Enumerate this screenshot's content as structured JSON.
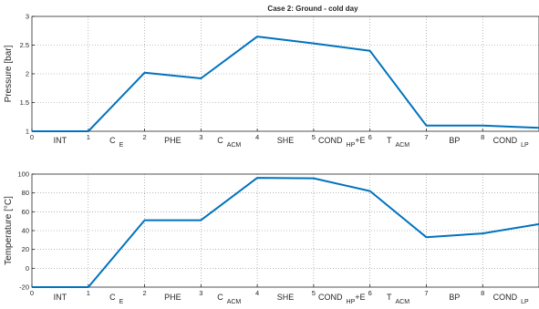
{
  "chart_data": [
    {
      "type": "line",
      "title": "Case 2: Ground - cold day",
      "ylabel": "Pressure [bar]",
      "xlim": [
        0,
        9
      ],
      "ylim": [
        1,
        3
      ],
      "xticks": [
        "0",
        "1",
        "2",
        "3",
        "4",
        "5",
        "6",
        "7",
        "8"
      ],
      "yticks": [
        "1",
        "1.5",
        "2",
        "2.5",
        "3"
      ],
      "grid": true,
      "x": [
        0,
        1,
        2,
        3,
        4,
        5,
        6,
        7,
        8,
        9
      ],
      "series": [
        {
          "values": [
            1.0,
            1.0,
            2.02,
            1.92,
            2.65,
            2.53,
            2.4,
            1.1,
            1.1,
            1.06
          ],
          "color": "#0072BD"
        }
      ],
      "stage_labels": [
        {
          "text": "INT",
          "sub": ""
        },
        {
          "text": "C",
          "sub": "E"
        },
        {
          "text": "PHE",
          "sub": ""
        },
        {
          "text": "C",
          "sub": "ACM"
        },
        {
          "text": "SHE",
          "sub": ""
        },
        {
          "text": "COND",
          "sub": "HP",
          "suffix": "+E"
        },
        {
          "text": "T",
          "sub": "ACM"
        },
        {
          "text": "BP",
          "sub": ""
        },
        {
          "text": "COND",
          "sub": "LP"
        }
      ]
    },
    {
      "type": "line",
      "title": "",
      "ylabel": "Temperature [°C]",
      "xlim": [
        0,
        9
      ],
      "ylim": [
        -20,
        100
      ],
      "xticks": [
        "0",
        "1",
        "2",
        "3",
        "4",
        "5",
        "6",
        "7",
        "8"
      ],
      "yticks": [
        "-20",
        "0",
        "20",
        "40",
        "60",
        "80",
        "100"
      ],
      "grid": true,
      "x": [
        0,
        1,
        2,
        3,
        4,
        5,
        6,
        7,
        8,
        9
      ],
      "series": [
        {
          "values": [
            -20,
            -20,
            51,
            51,
            96,
            95.5,
            82,
            33,
            37,
            47
          ],
          "color": "#0072BD"
        }
      ],
      "stage_labels": [
        {
          "text": "INT",
          "sub": ""
        },
        {
          "text": "C",
          "sub": "E"
        },
        {
          "text": "PHE",
          "sub": ""
        },
        {
          "text": "C",
          "sub": "ACM"
        },
        {
          "text": "SHE",
          "sub": ""
        },
        {
          "text": "COND",
          "sub": "HP",
          "suffix": "+E"
        },
        {
          "text": "T",
          "sub": "ACM"
        },
        {
          "text": "BP",
          "sub": ""
        },
        {
          "text": "COND",
          "sub": "LP"
        }
      ]
    }
  ]
}
